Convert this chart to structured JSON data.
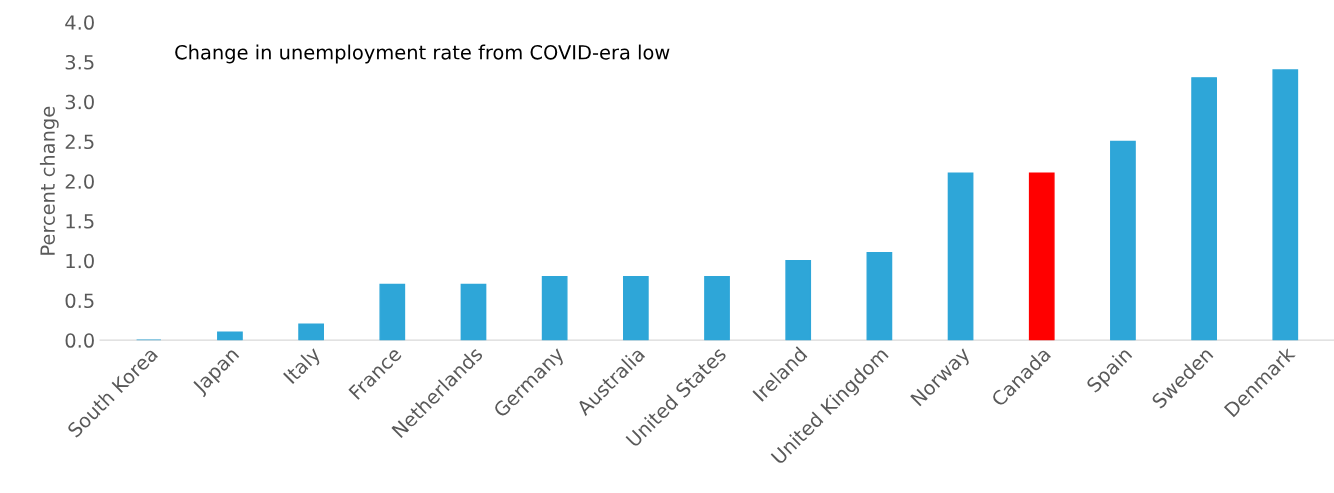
{
  "chart_data": {
    "type": "bar",
    "title": "Change in unemployment rate from COVID-era low",
    "ylabel": "Percent change",
    "categories": [
      "South Korea",
      "Japan",
      "Italy",
      "France",
      "Netherlands",
      "Germany",
      "Australia",
      "United States",
      "Ireland",
      "United Kingdom",
      "Norway",
      "Canada",
      "Spain",
      "Sweden",
      "Denmark"
    ],
    "values": [
      0,
      0.1,
      0.2,
      0.7,
      0.7,
      0.8,
      0.8,
      0.8,
      1.0,
      1.1,
      2.1,
      2.1,
      2.5,
      3.3,
      3.4
    ],
    "colors": [
      "#2ea6d8",
      "#2ea6d8",
      "#2ea6d8",
      "#2ea6d8",
      "#2ea6d8",
      "#2ea6d8",
      "#2ea6d8",
      "#2ea6d8",
      "#2ea6d8",
      "#2ea6d8",
      "#2ea6d8",
      "#ff0000",
      "#2ea6d8",
      "#2ea6d8",
      "#2ea6d8"
    ],
    "ylim": [
      0,
      4
    ],
    "yticks": [
      {
        "value": 0,
        "label": "0.0"
      },
      {
        "value": 0.5,
        "label": "0.5"
      },
      {
        "value": 1,
        "label": "1.0"
      },
      {
        "value": 1.5,
        "label": "1.5"
      },
      {
        "value": 2,
        "label": "2.0"
      },
      {
        "value": 2.5,
        "label": "2.5"
      },
      {
        "value": 3,
        "label": "3.0"
      },
      {
        "value": 3.5,
        "label": "3.5"
      },
      {
        "value": 4,
        "label": "4.0"
      }
    ],
    "grid": false,
    "legend": false
  }
}
